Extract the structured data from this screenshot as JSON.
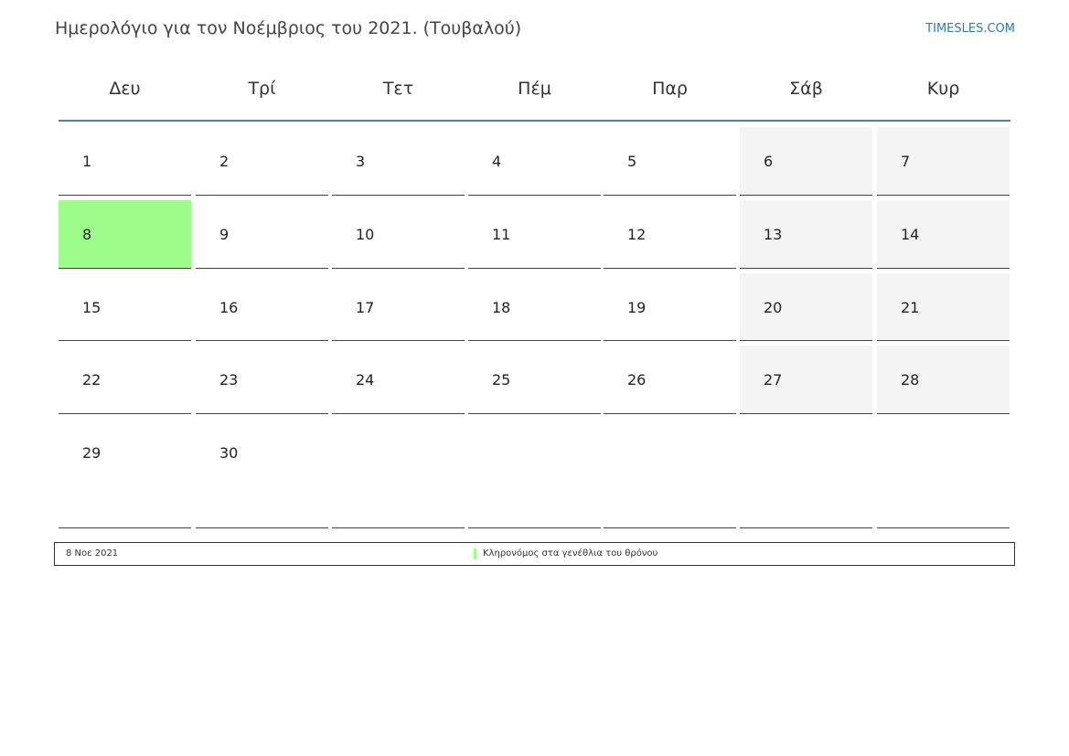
{
  "header": {
    "title": "Ημερολόγιο για τον Νοέμβριος του 2021. (Τουβαλού)",
    "brand": "TIMESLES.COM"
  },
  "weekdays": [
    "Δευ",
    "Τρί",
    "Τετ",
    "Πέμ",
    "Παρ",
    "Σάβ",
    "Κυρ"
  ],
  "weeks": [
    [
      "1",
      "2",
      "3",
      "4",
      "5",
      "6",
      "7"
    ],
    [
      "8",
      "9",
      "10",
      "11",
      "12",
      "13",
      "14"
    ],
    [
      "15",
      "16",
      "17",
      "18",
      "19",
      "20",
      "21"
    ],
    [
      "22",
      "23",
      "24",
      "25",
      "26",
      "27",
      "28"
    ],
    [
      "29",
      "30",
      "",
      "",
      "",
      "",
      ""
    ]
  ],
  "highlighted_day": "8",
  "colors": {
    "holiday": "#9dfd8a",
    "weekend": "#f4f4f4",
    "header_line": "#5b7aa3",
    "brand": "#2a7abf"
  },
  "holidays": [
    {
      "date": "8 Νοε 2021",
      "name": "Κληρονόμος στα γενέθλια του θρόνου"
    }
  ]
}
